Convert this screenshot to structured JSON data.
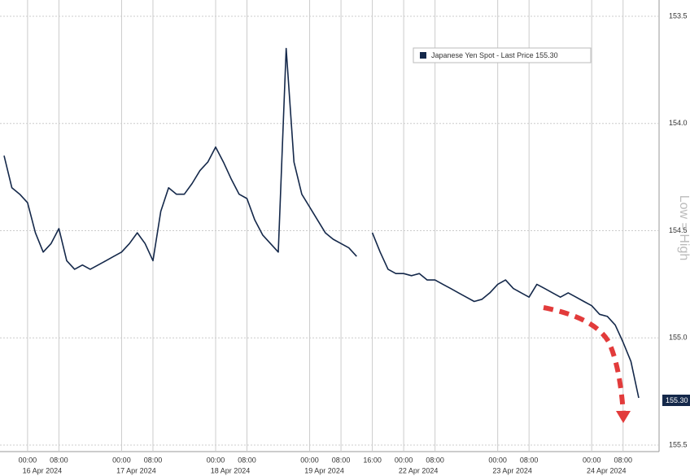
{
  "chart_data": {
    "type": "line",
    "series": [
      {
        "name": "Japanese Yen Spot - Last Price 155.30",
        "color": "#14284a",
        "values": [
          154.15,
          154.3,
          154.33,
          154.37,
          154.51,
          154.6,
          154.56,
          154.49,
          154.64,
          154.68,
          154.66,
          154.68,
          154.66,
          154.64,
          154.62,
          154.6,
          154.56,
          154.51,
          154.56,
          154.64,
          154.41,
          154.3,
          154.33,
          154.33,
          154.28,
          154.22,
          154.18,
          154.11,
          154.18,
          154.26,
          154.33,
          154.35,
          154.45,
          154.52,
          154.56,
          154.6,
          153.65,
          154.18,
          154.33,
          154.39,
          154.45,
          154.51,
          154.54,
          154.56,
          154.58,
          154.62,
          null,
          154.51,
          154.6,
          154.68,
          154.7,
          154.7,
          154.71,
          154.7,
          154.73,
          154.73,
          154.75,
          154.77,
          154.79,
          154.81,
          154.83,
          154.82,
          154.79,
          154.75,
          154.73,
          154.77,
          154.79,
          154.81,
          154.75,
          154.77,
          154.79,
          154.81,
          154.79,
          154.81,
          154.83,
          154.85,
          154.89,
          154.9,
          154.94,
          155.02,
          155.11,
          155.28
        ]
      }
    ],
    "categories": [
      null,
      null,
      null,
      "00:00",
      null,
      null,
      null,
      "08:00",
      null,
      null,
      null,
      null,
      null,
      null,
      null,
      "00:00",
      null,
      null,
      null,
      "08:00",
      null,
      null,
      null,
      null,
      null,
      null,
      null,
      "00:00",
      null,
      null,
      null,
      "08:00",
      null,
      null,
      null,
      null,
      null,
      null,
      null,
      "00:00",
      null,
      null,
      null,
      "08:00",
      null,
      null,
      null,
      "16:00",
      null,
      null,
      null,
      "00:00",
      null,
      null,
      null,
      "08:00",
      null,
      null,
      null,
      null,
      null,
      null,
      null,
      "00:00",
      null,
      null,
      null,
      "08:00",
      null,
      null,
      null,
      null,
      null,
      null,
      null,
      "00:00",
      null,
      null,
      null,
      "08:00",
      null,
      null
    ],
    "dates": [
      "16 Apr 2024",
      "17 Apr 2024",
      "18 Apr 2024",
      "19 Apr 2024",
      "22 Apr 2024",
      "23 Apr 2024",
      "24 Apr 2024"
    ],
    "ylim": [
      153.5,
      155.5
    ],
    "y_inverted": true,
    "yticks": [
      153.5,
      {
        "value": 154,
        "label": "154.0"
      },
      154.5,
      {
        "value": 155,
        "label": "155.0"
      },
      155.5
    ],
    "grid": true,
    "axis_note": "Low = High",
    "last_price_label": "155.30"
  }
}
